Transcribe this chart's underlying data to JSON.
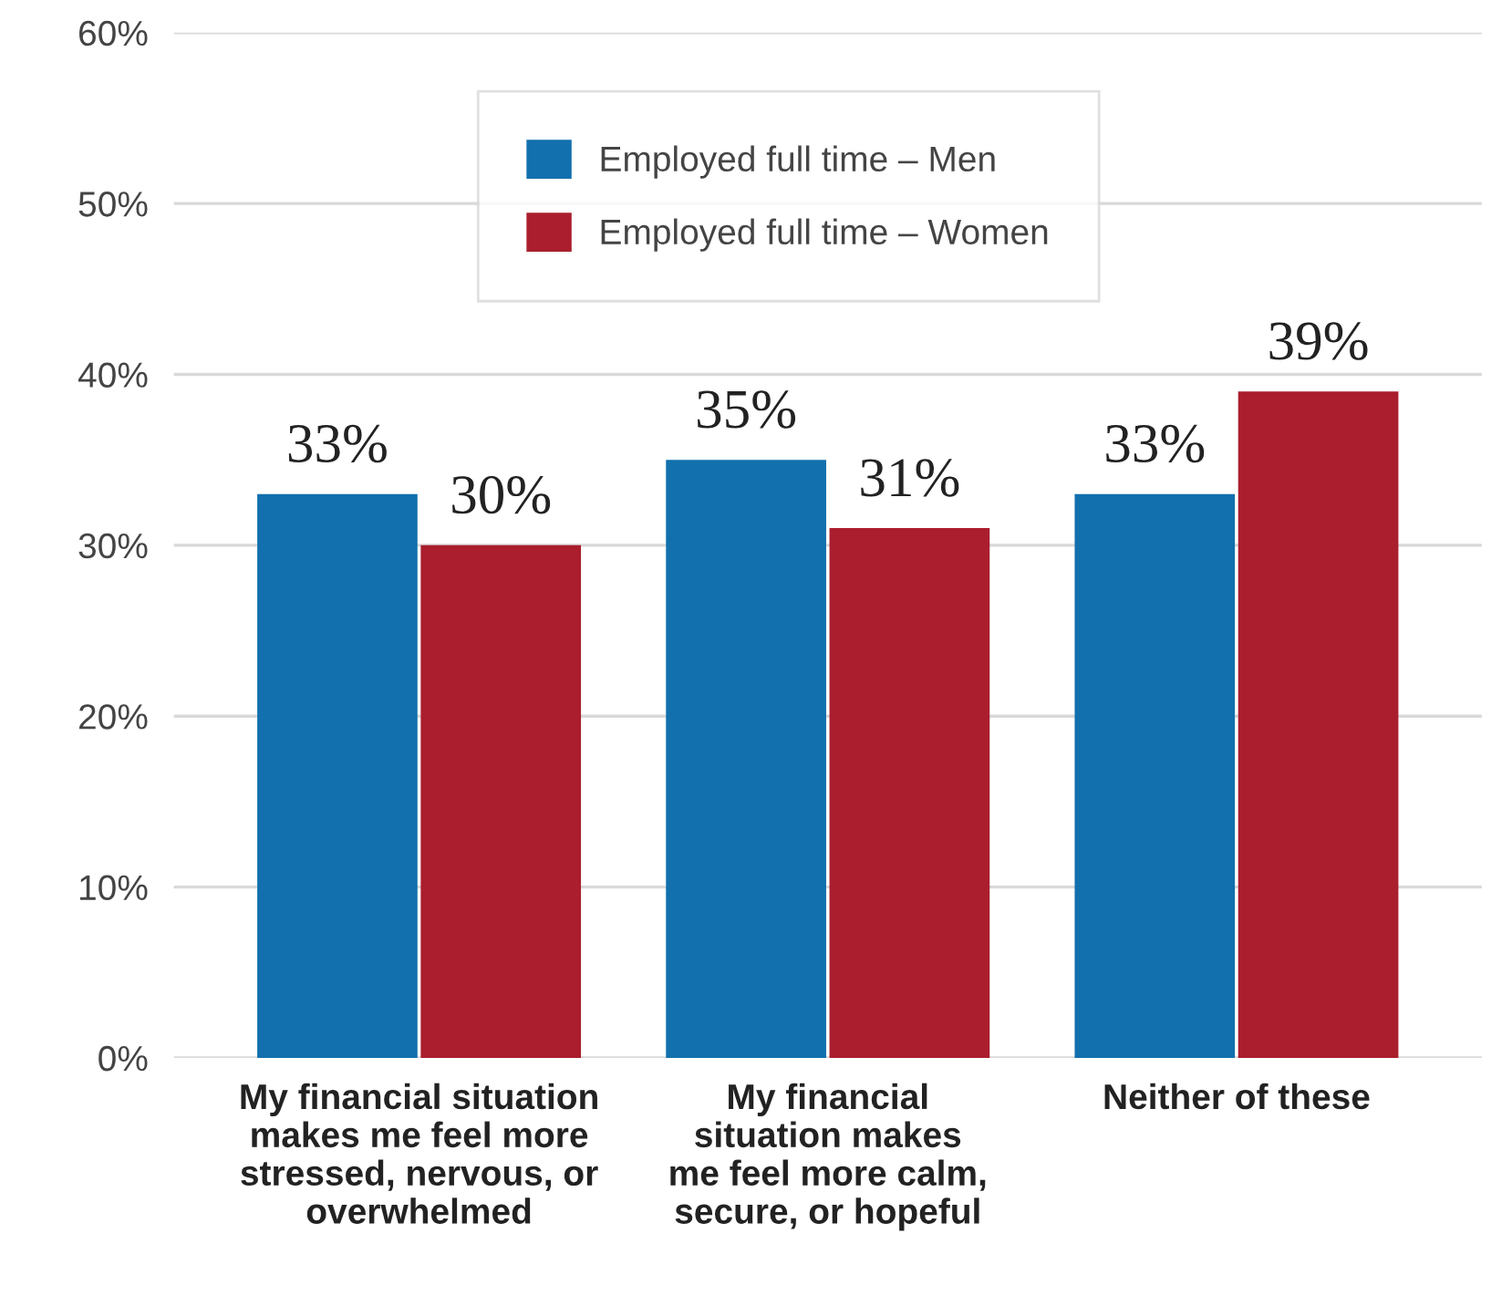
{
  "chart_data": {
    "type": "bar",
    "categories": [
      "My financial situation\nmakes me feel more\nstressed, nervous, or\noverwhelmed",
      "My financial\nsituation makes\nme feel more calm,\nsecure, or hopeful",
      "Neither of these"
    ],
    "series": [
      {
        "name": "Employed full time – Men",
        "color": "#1170ad",
        "values": [
          33,
          35,
          33
        ],
        "value_labels": [
          "33%",
          "35%",
          "33%"
        ]
      },
      {
        "name": "Employed full time – Women",
        "color": "#aa1e2d",
        "values": [
          30,
          31,
          39
        ],
        "value_labels": [
          "30%",
          "31%",
          "39%"
        ]
      }
    ],
    "ylim": [
      0,
      60
    ],
    "yticks": [
      {
        "value": 0,
        "label": "0%"
      },
      {
        "value": 10,
        "label": "10%"
      },
      {
        "value": 20,
        "label": "20%"
      },
      {
        "value": 30,
        "label": "30%"
      },
      {
        "value": 40,
        "label": "40%"
      },
      {
        "value": 50,
        "label": "50%"
      },
      {
        "value": 60,
        "label": "60%"
      }
    ],
    "grid": "y",
    "legend": "top"
  }
}
